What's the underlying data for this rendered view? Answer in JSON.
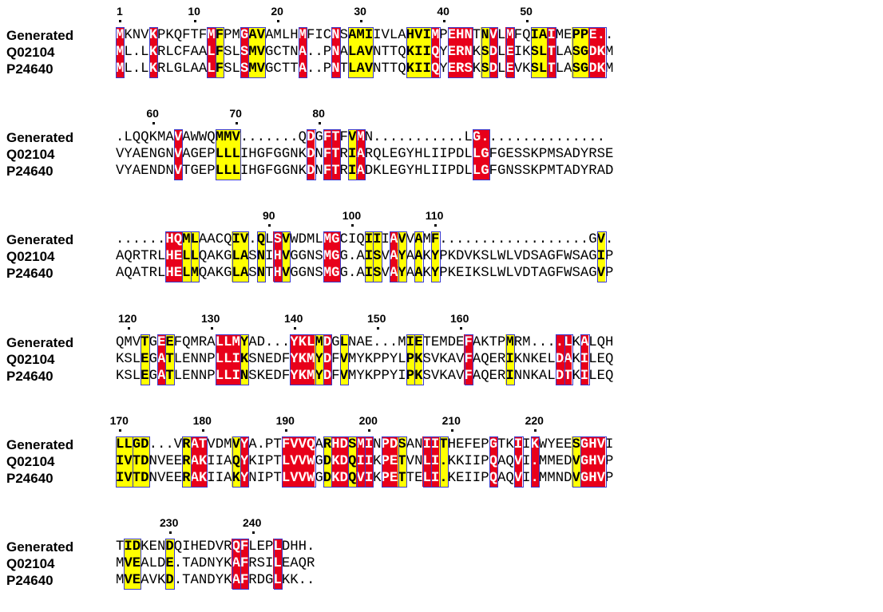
{
  "colors": {
    "identical": "#e8001a",
    "similar": "#ffff00",
    "frame": "#3a3acc"
  },
  "names": [
    "Generated",
    "Q02104",
    "P24640"
  ],
  "blocks": [
    {
      "rows": [
        "MKNVKPKQFTFMFPMGAVAMLHMFICNSAMIIVLAHVIMPEHNTNVLMFQIAIMEPPE..",
        "ML.LKRLCFAALFSLSMVGCTNA..PNALAVNTTQKIIQYERNKSDLEIKSLTLASGDKM",
        "ML.LKRLGLAALFSLSMVGCTTA..PNTLAVNTTQKIIQYERSKSDLEVKSLTLASGDKM"
      ],
      "numbers": [
        {
          "label": "1",
          "col": 0
        },
        {
          "label": "10",
          "col": 9
        },
        {
          "label": "20",
          "col": 19
        },
        {
          "label": "30",
          "col": 29
        },
        {
          "label": "40",
          "col": 39
        },
        {
          "label": "50",
          "col": 49
        }
      ]
    },
    {
      "rows": [
        ".LQQKMAVAWWQMMV.......QDGFTFVMN...........LG...............",
        "VYAENGNVAGEPLLLIHGFGGNKDNFTRIARQLEGYHLIIPDLLGFGESSKPMSADYRSE",
        "VYAENDNVTGEPLLLIHGFGGNKDNFTRIADKLEGYHLIIPDLLGFGNSSKPMTADYRAD"
      ],
      "numbers": [
        {
          "label": "60",
          "col": 4
        },
        {
          "label": "70",
          "col": 14
        },
        {
          "label": "80",
          "col": 24
        }
      ]
    },
    {
      "rows": [
        "......HQMLAACQIV.QLSVWDMLMGCIQIIIAVVAMF..................GV.",
        "AQRTRLHELLQAKGLASNIHVGGNSMGG.AISVAYAAKYPKDVKSLWLVDSAGFWSAGIP",
        "AQATRLHELMQAKGLASNTHVGGNSMGG.AISVAYAAKYPKEIKSLWLVDTAGFWSAGVP"
      ],
      "numbers": [
        {
          "label": "90",
          "col": 18
        },
        {
          "label": "100",
          "col": 28
        },
        {
          "label": "110",
          "col": 38
        }
      ]
    },
    {
      "rows": [
        "QMVTGEEFQMRALLMYAD...YKLMDGLNAE...MIETEMDEFAKTPMRM....LKALQH",
        "KSLEGATLENNPLLIKSNEDFYKMYDFVMYKPPYLPKSVKAVFAQERIKNKELDAKILEQ",
        "KSLEGATLENNPLLINSKEDFYKMYDFVMYKPPYIPKSVKAVFAQERINNKALDTKILEQ"
      ],
      "numbers": [
        {
          "label": "120",
          "col": 1
        },
        {
          "label": "130",
          "col": 11
        },
        {
          "label": "140",
          "col": 21
        },
        {
          "label": "150",
          "col": 31
        },
        {
          "label": "160",
          "col": 41
        }
      ]
    },
    {
      "rows": [
        "LLGD...VRATVDMVYA.PTFVVQARHDSMINPDSANIITHEFEPGTKIIKWYEESGHVI",
        "IVTDNVEERAKIIAQYKIPTLVVWGDKDQIIKPETVNLI.KKIIPQAQVI.MMEDVGHVP",
        "IVTDNVEERAKIIAKYNIPTLVVWGDKDQVIKPETTELI.KEIIPQAQVI.MMNDVGHVP"
      ],
      "numbers": [
        {
          "label": "170",
          "col": 0
        },
        {
          "label": "180",
          "col": 10
        },
        {
          "label": "190",
          "col": 20
        },
        {
          "label": "200",
          "col": 30
        },
        {
          "label": "210",
          "col": 40
        },
        {
          "label": "220",
          "col": 50
        }
      ]
    },
    {
      "rows": [
        "TIDKENDQIHEDVRQFLEPLDHH.",
        "MVEALDE.TADNYKAFRSILEAQR",
        "MVEAVKD.TANDYKAFRDGLKK.."
      ],
      "numbers": [
        {
          "label": "230",
          "col": 6
        },
        {
          "label": "240",
          "col": 16
        }
      ]
    }
  ],
  "red_runs": [
    [
      [
        0,
        1
      ],
      [
        4,
        5
      ],
      [
        11,
        12
      ],
      [
        15,
        16
      ],
      [
        22,
        23
      ],
      [
        26,
        27
      ],
      [
        38,
        39
      ],
      [
        40,
        43
      ],
      [
        45,
        46
      ],
      [
        47,
        48
      ],
      [
        52,
        53
      ],
      [
        57,
        59
      ]
    ],
    [
      [
        7,
        8
      ],
      [
        23,
        24
      ],
      [
        25,
        27
      ],
      [
        29,
        30
      ],
      [
        43,
        45
      ]
    ],
    [
      [
        6,
        8
      ],
      [
        19,
        20
      ],
      [
        25,
        27
      ],
      [
        33,
        34
      ]
    ],
    [
      [
        5,
        6
      ],
      [
        12,
        15
      ],
      [
        21,
        24
      ],
      [
        25,
        26
      ],
      [
        42,
        43
      ],
      [
        53,
        55
      ],
      [
        56,
        57
      ]
    ],
    [
      [
        9,
        11
      ],
      [
        15,
        16
      ],
      [
        20,
        24
      ],
      [
        26,
        28
      ],
      [
        29,
        31
      ],
      [
        32,
        34
      ],
      [
        37,
        39
      ],
      [
        45,
        46
      ],
      [
        48,
        49
      ],
      [
        50,
        51
      ],
      [
        56,
        59
      ]
    ],
    [
      [
        14,
        15
      ],
      [
        15,
        16
      ],
      [
        19,
        20
      ]
    ]
  ],
  "yellow_runs": [
    [
      [
        12,
        13
      ],
      [
        16,
        18
      ],
      [
        28,
        31
      ],
      [
        35,
        38
      ],
      [
        44,
        45
      ],
      [
        50,
        52
      ],
      [
        55,
        57
      ]
    ],
    [
      [
        12,
        15
      ],
      [
        23,
        24
      ],
      [
        26,
        27
      ],
      [
        28,
        29
      ]
    ],
    [
      [
        8,
        9
      ],
      [
        9,
        10
      ],
      [
        14,
        16
      ],
      [
        17,
        18
      ],
      [
        20,
        21
      ],
      [
        30,
        31
      ],
      [
        31,
        32
      ],
      [
        34,
        35
      ],
      [
        36,
        37
      ],
      [
        38,
        39
      ],
      [
        58,
        59
      ]
    ],
    [
      [
        3,
        4
      ],
      [
        6,
        7
      ],
      [
        15,
        16
      ],
      [
        24,
        25
      ],
      [
        27,
        28
      ],
      [
        35,
        36
      ],
      [
        36,
        37
      ],
      [
        47,
        48
      ],
      [
        54,
        55
      ]
    ],
    [
      [
        0,
        2
      ],
      [
        2,
        4
      ],
      [
        8,
        9
      ],
      [
        14,
        15
      ],
      [
        25,
        26
      ],
      [
        28,
        29
      ],
      [
        30,
        31
      ],
      [
        34,
        35
      ],
      [
        38,
        39
      ],
      [
        39,
        40
      ],
      [
        48,
        49
      ],
      [
        55,
        56
      ]
    ],
    [
      [
        1,
        3
      ],
      [
        6,
        7
      ],
      [
        14,
        15
      ]
    ]
  ]
}
